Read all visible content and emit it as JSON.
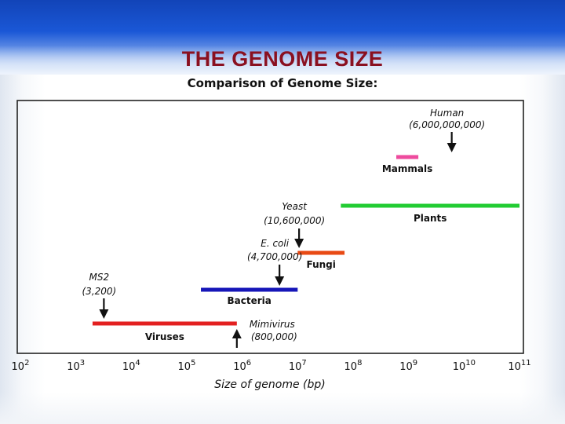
{
  "slide": {
    "title": "THE GENOME SIZE"
  },
  "colors": {
    "viruses": "#e32020",
    "bacteria": "#1616b8",
    "fungi": "#e84a14",
    "plants": "#22cc33",
    "mammals": "#ee4b9e",
    "title": "#8a1020"
  },
  "chart_data": {
    "type": "range-bar",
    "title": "Comparison of Genome Size:",
    "xlabel": "Size of genome (bp)",
    "ylabel": "",
    "x_scale": "log",
    "xlim": [
      100,
      100000000000
    ],
    "grid": false,
    "x_ticks": [
      {
        "base": "10",
        "exp": "2",
        "value": 100
      },
      {
        "base": "10",
        "exp": "3",
        "value": 1000
      },
      {
        "base": "10",
        "exp": "4",
        "value": 10000
      },
      {
        "base": "10",
        "exp": "5",
        "value": 100000
      },
      {
        "base": "10",
        "exp": "6",
        "value": 1000000
      },
      {
        "base": "10",
        "exp": "7",
        "value": 10000000
      },
      {
        "base": "10",
        "exp": "8",
        "value": 100000000
      },
      {
        "base": "10",
        "exp": "9",
        "value": 1000000000
      },
      {
        "base": "10",
        "exp": "10",
        "value": 10000000000
      },
      {
        "base": "10",
        "exp": "11",
        "value": 100000000000
      }
    ],
    "ranges": [
      {
        "label": "Viruses",
        "min": 2000,
        "max": 800000,
        "color": "#e32020"
      },
      {
        "label": "Bacteria",
        "min": 180000,
        "max": 10000000,
        "color": "#1616b8"
      },
      {
        "label": "Fungi",
        "min": 10000000,
        "max": 70000000,
        "color": "#e84a14"
      },
      {
        "label": "Plants",
        "min": 60000000,
        "max": 100000000000,
        "color": "#22cc33"
      },
      {
        "label": "Mammals",
        "min": 600000000,
        "max": 1500000000,
        "color": "#ee4b9e"
      }
    ],
    "annotations": [
      {
        "name": "MS2",
        "size_label": "(3,200)",
        "value": 3200,
        "direction": "down"
      },
      {
        "name": "E. coli",
        "size_label": "(4,700,000)",
        "value": 4700000,
        "direction": "down"
      },
      {
        "name": "Yeast",
        "size_label": "(10,600,000)",
        "value": 10600000,
        "direction": "down"
      },
      {
        "name": "Human",
        "size_label": "(6,000,000,000)",
        "value": 6000000000,
        "direction": "down"
      },
      {
        "name": "Mimivirus",
        "size_label": "(800,000)",
        "value": 800000,
        "direction": "up"
      }
    ]
  }
}
